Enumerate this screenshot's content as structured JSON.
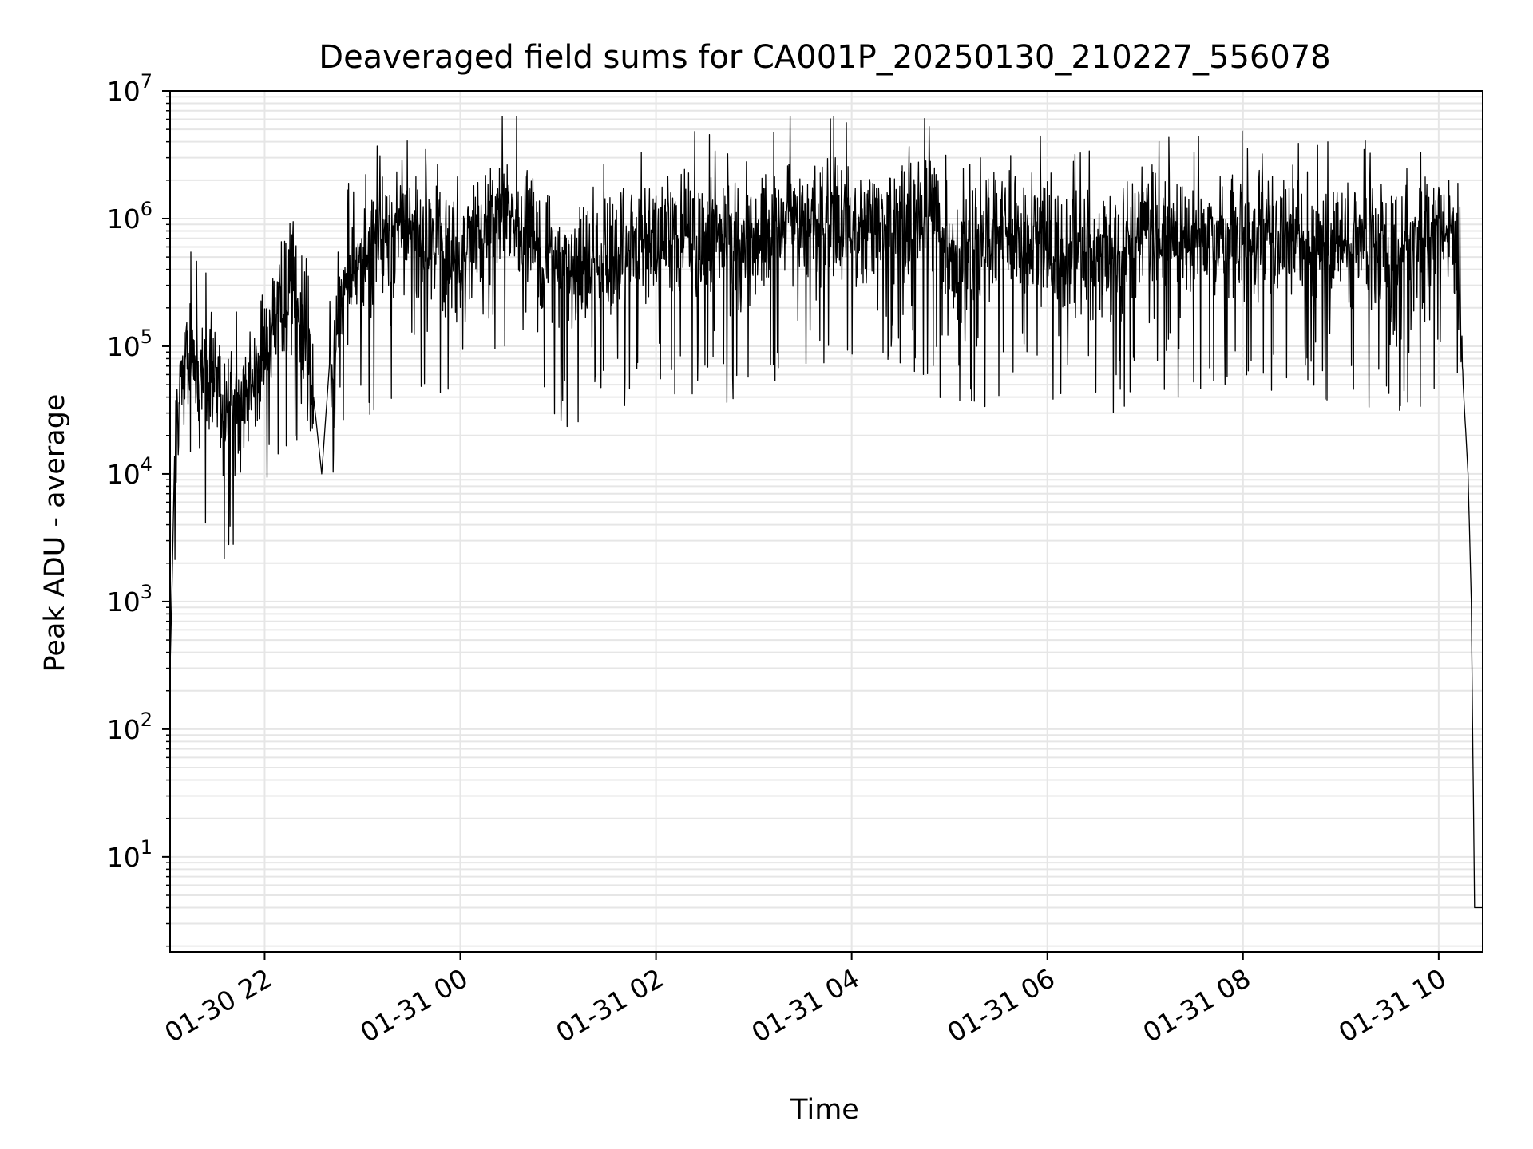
{
  "chart_data": {
    "type": "line",
    "title": "Deaveraged field sums for CA001P_20250130_210227_556078",
    "xlabel": "Time",
    "ylabel": "Peak ADU - average",
    "yscale": "log",
    "ylim": [
      1.8,
      10000000
    ],
    "xlim": [
      "2025-01-30 21:02",
      "2025-01-31 10:27"
    ],
    "grid": true,
    "line_color": "#000000",
    "grid_color": "#e6e6e6",
    "x_ticks": [
      {
        "t": "2025-01-30 22:00",
        "label": "01-30 22"
      },
      {
        "t": "2025-01-31 00:00",
        "label": "01-31 00"
      },
      {
        "t": "2025-01-31 02:00",
        "label": "01-31 02"
      },
      {
        "t": "2025-01-31 04:00",
        "label": "01-31 04"
      },
      {
        "t": "2025-01-31 06:00",
        "label": "01-31 06"
      },
      {
        "t": "2025-01-31 08:00",
        "label": "01-31 08"
      },
      {
        "t": "2025-01-31 10:00",
        "label": "01-31 10"
      }
    ],
    "y_ticks": [
      {
        "value": 10,
        "base": "10",
        "exp": "1"
      },
      {
        "value": 100,
        "base": "10",
        "exp": "2"
      },
      {
        "value": 1000,
        "base": "10",
        "exp": "3"
      },
      {
        "value": 10000,
        "base": "10",
        "exp": "4"
      },
      {
        "value": 100000,
        "base": "10",
        "exp": "5"
      },
      {
        "value": 1000000,
        "base": "10",
        "exp": "6"
      },
      {
        "value": 10000000,
        "base": "10",
        "exp": "7"
      }
    ],
    "series": [
      {
        "points": [
          [
            "2025-01-30 21:02",
            300
          ],
          [
            "2025-01-30 21:03",
            1000
          ],
          [
            "2025-01-30 21:05",
            20000
          ],
          [
            "2025-01-30 21:08",
            50000
          ],
          [
            "2025-01-30 21:15",
            80000
          ],
          [
            "2025-01-30 21:25",
            60000
          ],
          [
            "2025-01-30 21:35",
            40000
          ],
          [
            "2025-01-30 21:45",
            30000
          ],
          [
            "2025-01-30 21:55",
            60000
          ],
          [
            "2025-01-30 22:05",
            150000
          ],
          [
            "2025-01-30 22:15",
            300000
          ],
          [
            "2025-01-30 22:25",
            150000
          ],
          [
            "2025-01-30 22:30",
            40000
          ],
          [
            "2025-01-30 22:35",
            10000
          ],
          [
            "2025-01-30 22:40",
            80000
          ],
          [
            "2025-01-30 22:50",
            300000
          ],
          [
            "2025-01-30 23:00",
            500000
          ],
          [
            "2025-01-30 23:10",
            700000
          ],
          [
            "2025-01-30 23:20",
            800000
          ],
          [
            "2025-01-30 23:30",
            900000
          ],
          [
            "2025-01-30 23:40",
            800000
          ],
          [
            "2025-01-30 23:50",
            500000
          ],
          [
            "2025-01-31 00:00",
            400000
          ],
          [
            "2025-01-31 00:10",
            800000
          ],
          [
            "2025-01-31 00:20",
            1000000
          ],
          [
            "2025-01-31 00:30",
            1200000
          ],
          [
            "2025-01-31 00:45",
            800000
          ],
          [
            "2025-01-31 01:00",
            400000
          ],
          [
            "2025-01-31 01:15",
            400000
          ],
          [
            "2025-01-31 01:30",
            500000
          ],
          [
            "2025-01-31 01:45",
            600000
          ],
          [
            "2025-01-31 02:00",
            700000
          ],
          [
            "2025-01-31 02:20",
            800000
          ],
          [
            "2025-01-31 02:40",
            700000
          ],
          [
            "2025-01-31 03:00",
            600000
          ],
          [
            "2025-01-31 03:15",
            700000
          ],
          [
            "2025-01-31 03:20",
            1000000
          ],
          [
            "2025-01-31 03:40",
            1000000
          ],
          [
            "2025-01-31 04:00",
            900000
          ],
          [
            "2025-01-31 04:30",
            1000000
          ],
          [
            "2025-01-31 04:50",
            1100000
          ],
          [
            "2025-01-31 05:00",
            400000
          ],
          [
            "2025-01-31 05:30",
            800000
          ],
          [
            "2025-01-31 06:00",
            700000
          ],
          [
            "2025-01-31 06:30",
            500000
          ],
          [
            "2025-01-31 07:00",
            800000
          ],
          [
            "2025-01-31 07:30",
            700000
          ],
          [
            "2025-01-31 08:00",
            700000
          ],
          [
            "2025-01-31 08:30",
            700000
          ],
          [
            "2025-01-31 09:00",
            600000
          ],
          [
            "2025-01-31 09:30",
            600000
          ],
          [
            "2025-01-31 09:50",
            600000
          ],
          [
            "2025-01-31 10:05",
            800000
          ],
          [
            "2025-01-31 10:10",
            1000000
          ],
          [
            "2025-01-31 10:12",
            400000
          ],
          [
            "2025-01-31 10:15",
            50000
          ],
          [
            "2025-01-31 10:18",
            10000
          ],
          [
            "2025-01-31 10:20",
            1000
          ],
          [
            "2025-01-31 10:22",
            4
          ],
          [
            "2025-01-31 10:27",
            4
          ]
        ]
      }
    ]
  }
}
